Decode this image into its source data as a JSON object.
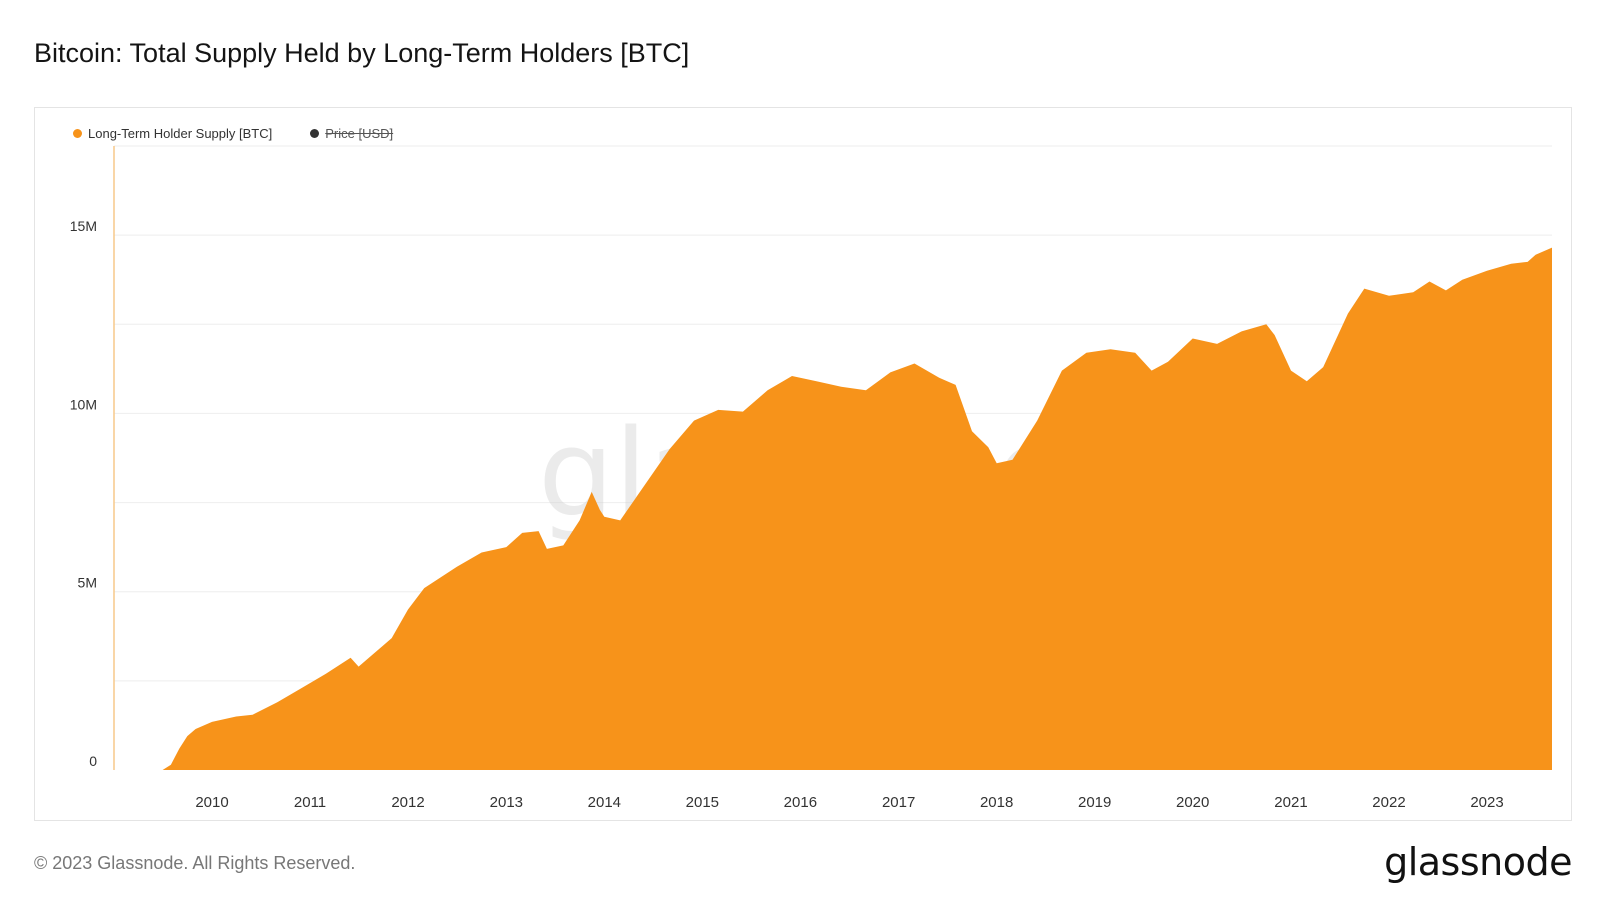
{
  "title": "Bitcoin: Total Supply Held by Long-Term Holders [BTC]",
  "footer": {
    "copyright": "© 2023 Glassnode. All Rights Reserved.",
    "brand": "glassnode"
  },
  "watermark": "glassnode",
  "colors": {
    "series": "#f7931a",
    "price_legend": "#333333",
    "grid": "#eeeeee",
    "axis_text": "#333333"
  },
  "chart_data": {
    "type": "area",
    "title": "Bitcoin: Total Supply Held by Long-Term Holders [BTC]",
    "xlabel": "",
    "ylabel": "",
    "legend_placement": "top-left",
    "grid": true,
    "legend": [
      {
        "name": "Long-Term Holder Supply [BTC]",
        "color": "#f7931a",
        "enabled": true
      },
      {
        "name": "Price [USD]",
        "color": "#333333",
        "enabled": false
      }
    ],
    "x_range": [
      "2009-01-01",
      "2023-08-31"
    ],
    "ylim": [
      0,
      17500000
    ],
    "y_ticks": [
      {
        "value": 0,
        "label": "0"
      },
      {
        "value": 5000000,
        "label": "5M"
      },
      {
        "value": 10000000,
        "label": "10M"
      },
      {
        "value": 15000000,
        "label": "15M"
      }
    ],
    "y_gridlines": [
      2500000,
      5000000,
      7500000,
      10000000,
      12500000,
      15000000,
      17500000
    ],
    "x_ticks": [
      {
        "date": "2010-01-01",
        "label": "2010"
      },
      {
        "date": "2011-01-01",
        "label": "2011"
      },
      {
        "date": "2012-01-01",
        "label": "2012"
      },
      {
        "date": "2013-01-01",
        "label": "2013"
      },
      {
        "date": "2014-01-01",
        "label": "2014"
      },
      {
        "date": "2015-01-01",
        "label": "2015"
      },
      {
        "date": "2016-01-01",
        "label": "2016"
      },
      {
        "date": "2017-01-01",
        "label": "2017"
      },
      {
        "date": "2018-01-01",
        "label": "2018"
      },
      {
        "date": "2019-01-01",
        "label": "2019"
      },
      {
        "date": "2020-01-01",
        "label": "2020"
      },
      {
        "date": "2021-01-01",
        "label": "2021"
      },
      {
        "date": "2022-01-01",
        "label": "2022"
      },
      {
        "date": "2023-01-01",
        "label": "2023"
      }
    ],
    "series": [
      {
        "name": "Long-Term Holder Supply [BTC]",
        "points": [
          [
            "2009-01-01",
            0
          ],
          [
            "2009-07-01",
            0
          ],
          [
            "2009-08-01",
            150000
          ],
          [
            "2009-09-01",
            600000
          ],
          [
            "2009-10-01",
            950000
          ],
          [
            "2009-11-01",
            1150000
          ],
          [
            "2010-01-01",
            1350000
          ],
          [
            "2010-04-01",
            1500000
          ],
          [
            "2010-06-01",
            1550000
          ],
          [
            "2010-09-01",
            1900000
          ],
          [
            "2010-12-01",
            2300000
          ],
          [
            "2011-03-01",
            2700000
          ],
          [
            "2011-06-01",
            3150000
          ],
          [
            "2011-07-01",
            2900000
          ],
          [
            "2011-09-01",
            3300000
          ],
          [
            "2011-11-01",
            3700000
          ],
          [
            "2012-01-01",
            4500000
          ],
          [
            "2012-03-01",
            5100000
          ],
          [
            "2012-07-01",
            5700000
          ],
          [
            "2012-10-01",
            6100000
          ],
          [
            "2013-01-01",
            6250000
          ],
          [
            "2013-03-01",
            6650000
          ],
          [
            "2013-05-01",
            6700000
          ],
          [
            "2013-06-01",
            6200000
          ],
          [
            "2013-08-01",
            6300000
          ],
          [
            "2013-10-01",
            7000000
          ],
          [
            "2013-11-15",
            7800000
          ],
          [
            "2013-12-15",
            7300000
          ],
          [
            "2014-01-01",
            7100000
          ],
          [
            "2014-03-01",
            7000000
          ],
          [
            "2014-06-01",
            8000000
          ],
          [
            "2014-09-01",
            9000000
          ],
          [
            "2014-12-01",
            9800000
          ],
          [
            "2015-03-01",
            10100000
          ],
          [
            "2015-06-01",
            10050000
          ],
          [
            "2015-09-01",
            10650000
          ],
          [
            "2015-12-01",
            11050000
          ],
          [
            "2016-03-01",
            10900000
          ],
          [
            "2016-06-01",
            10750000
          ],
          [
            "2016-09-01",
            10650000
          ],
          [
            "2016-12-01",
            11150000
          ],
          [
            "2017-03-01",
            11400000
          ],
          [
            "2017-06-01",
            11000000
          ],
          [
            "2017-08-01",
            10800000
          ],
          [
            "2017-10-01",
            9500000
          ],
          [
            "2017-12-01",
            9050000
          ],
          [
            "2018-01-01",
            8600000
          ],
          [
            "2018-03-01",
            8700000
          ],
          [
            "2018-06-01",
            9800000
          ],
          [
            "2018-09-01",
            11200000
          ],
          [
            "2018-12-01",
            11700000
          ],
          [
            "2019-03-01",
            11800000
          ],
          [
            "2019-06-01",
            11700000
          ],
          [
            "2019-08-01",
            11200000
          ],
          [
            "2019-10-01",
            11450000
          ],
          [
            "2020-01-01",
            12100000
          ],
          [
            "2020-04-01",
            11950000
          ],
          [
            "2020-07-01",
            12300000
          ],
          [
            "2020-10-01",
            12500000
          ],
          [
            "2020-11-01",
            12200000
          ],
          [
            "2021-01-01",
            11200000
          ],
          [
            "2021-03-01",
            10900000
          ],
          [
            "2021-05-01",
            11300000
          ],
          [
            "2021-08-01",
            12800000
          ],
          [
            "2021-10-01",
            13500000
          ],
          [
            "2022-01-01",
            13300000
          ],
          [
            "2022-04-01",
            13400000
          ],
          [
            "2022-06-01",
            13700000
          ],
          [
            "2022-08-01",
            13450000
          ],
          [
            "2022-10-01",
            13750000
          ],
          [
            "2023-01-01",
            14000000
          ],
          [
            "2023-04-01",
            14200000
          ],
          [
            "2023-06-01",
            14250000
          ],
          [
            "2023-07-01",
            14450000
          ],
          [
            "2023-08-31",
            14650000
          ]
        ]
      }
    ]
  }
}
